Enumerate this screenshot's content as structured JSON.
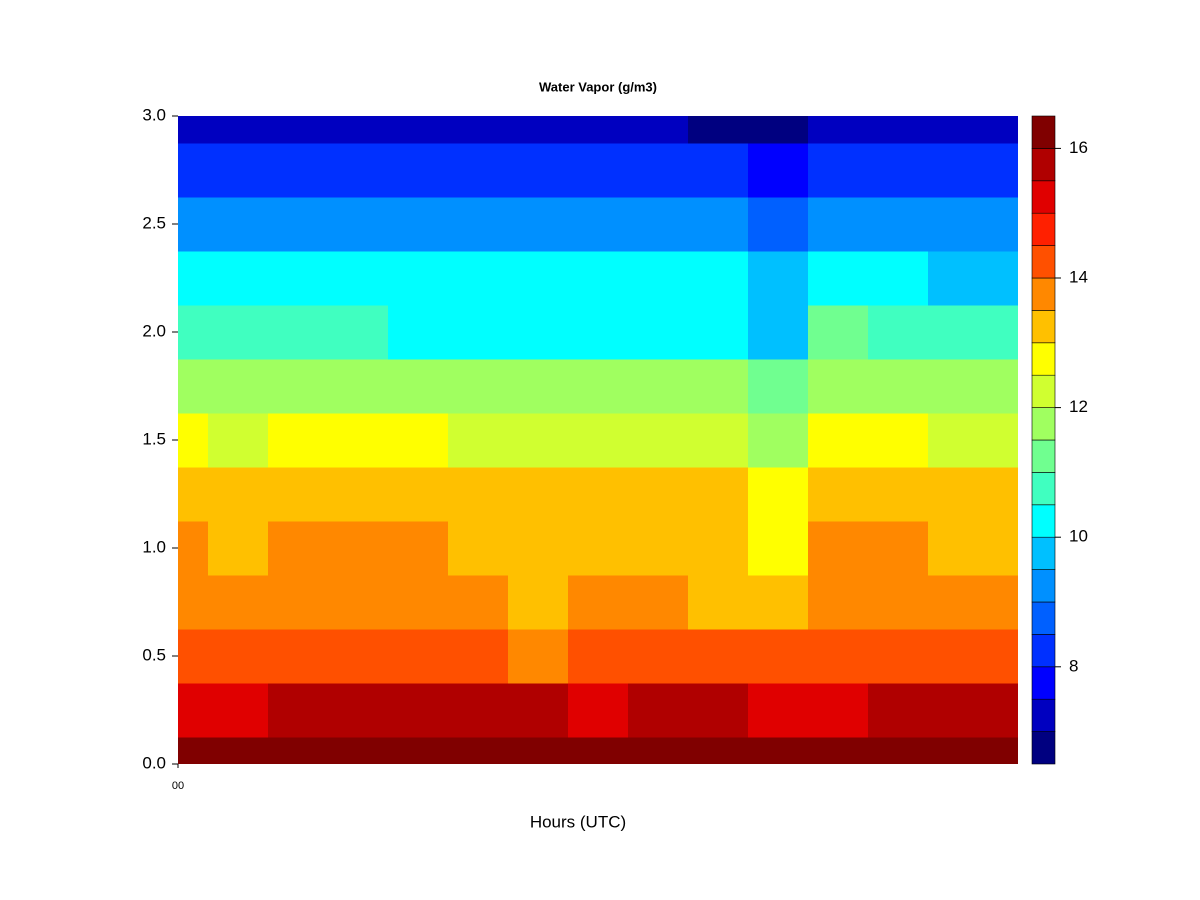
{
  "chart_data": {
    "type": "contour",
    "title": "Water Vapor (g/m3)",
    "x_label": "Hours (UTC)",
    "x": [
      0,
      1,
      2,
      3,
      4,
      5,
      6,
      7,
      8,
      9,
      10,
      11,
      12,
      13,
      14
    ],
    "y": [
      0,
      0.25,
      0.5,
      0.75,
      1,
      1.25,
      1.5,
      1.75,
      2,
      2.25,
      2.5,
      2.75,
      3
    ],
    "z": [
      [
        16.2,
        16.3,
        16.6,
        16.3,
        16.2,
        16.2,
        16.1,
        16.2,
        16.1,
        16.2,
        16.2,
        16.2,
        16.2,
        16.2,
        16.1
      ],
      [
        15.3,
        15.3,
        15.6,
        15.8,
        15.7,
        15.6,
        15.5,
        15.4,
        15.5,
        15.5,
        15.4,
        15.4,
        15.5,
        15.8,
        15.5
      ],
      [
        14.0,
        14.0,
        14.2,
        14.2,
        14.1,
        14.1,
        13.9,
        14.0,
        14.0,
        14.0,
        14.0,
        14.0,
        14.1,
        14.2,
        14.0
      ],
      [
        13.6,
        13.8,
        13.8,
        13.9,
        13.8,
        13.7,
        13.3,
        13.6,
        13.8,
        13.4,
        13.3,
        13.7,
        13.8,
        13.8,
        13.7
      ],
      [
        13.6,
        13.4,
        13.7,
        13.6,
        13.7,
        13.3,
        13.3,
        13.3,
        13.3,
        13.3,
        12.8,
        13.6,
        13.6,
        13.3,
        13.4
      ],
      [
        13.3,
        13.3,
        13.3,
        13.2,
        13.2,
        13.1,
        13.0,
        13.0,
        13.0,
        13.0,
        12.6,
        13.0,
        13.2,
        13.1,
        13.1
      ],
      [
        12.6,
        12.3,
        12.8,
        12.7,
        12.6,
        12.4,
        12.3,
        12.3,
        12.3,
        12.3,
        11.8,
        12.7,
        12.5,
        12.4,
        12.4
      ],
      [
        11.8,
        11.8,
        11.9,
        11.8,
        11.8,
        11.8,
        11.8,
        11.8,
        11.8,
        11.8,
        11.4,
        11.9,
        11.8,
        11.8,
        11.8
      ],
      [
        10.6,
        10.6,
        10.9,
        10.6,
        10.4,
        10.3,
        10.3,
        10.3,
        10.3,
        10.2,
        9.8,
        11.0,
        10.5,
        10.5,
        10.6
      ],
      [
        10.1,
        10.0,
        10.1,
        10.1,
        10.0,
        10.0,
        10.0,
        10.0,
        10.0,
        10.0,
        9.5,
        10.2,
        10.0,
        9.8,
        9.8
      ],
      [
        9.3,
        9.2,
        9.3,
        9.2,
        9.1,
        9.1,
        9.1,
        9.1,
        9.0,
        9.0,
        8.6,
        9.3,
        9.0,
        9.0,
        9.0
      ],
      [
        8.2,
        8.1,
        8.3,
        8.2,
        8.2,
        8.1,
        8.1,
        8.2,
        8.1,
        8.0,
        7.6,
        8.3,
        8.1,
        8.0,
        8.0
      ],
      [
        7.1,
        7.0,
        7.1,
        7.1,
        7.1,
        7.0,
        7.0,
        7.0,
        7.0,
        6.9,
        6.8,
        7.0,
        7.0,
        7.0,
        7.0
      ]
    ],
    "xlim": [
      0,
      14
    ],
    "xticks": [
      {
        "value": 0,
        "label": "00"
      }
    ],
    "ylim": [
      0,
      3
    ],
    "yticks": [
      {
        "value": 0,
        "label": "0.0"
      },
      {
        "value": 0.5,
        "label": "0.5"
      },
      {
        "value": 1,
        "label": "1.0"
      },
      {
        "value": 1.5,
        "label": "1.5"
      },
      {
        "value": 2,
        "label": "2.0"
      },
      {
        "value": 2.5,
        "label": "2.5"
      },
      {
        "value": 3,
        "label": "3.0"
      }
    ],
    "levels": [
      6.5,
      7,
      7.5,
      8,
      8.5,
      9,
      9.5,
      10,
      10.5,
      11,
      11.5,
      12,
      12.5,
      13,
      13.5,
      14,
      14.5,
      15,
      15.5,
      16,
      16.5
    ],
    "colors": [
      "#000080",
      "#0000c0",
      "#0000ff",
      "#0030ff",
      "#0060ff",
      "#0090ff",
      "#00c0ff",
      "#00ffff",
      "#40ffc0",
      "#70ff90",
      "#a0ff60",
      "#d0ff30",
      "#ffff00",
      "#ffc000",
      "#ff8800",
      "#ff5000",
      "#ff2000",
      "#e00000",
      "#b00000",
      "#800000"
    ],
    "colorbar_ticks": [
      8,
      10,
      12,
      14,
      16
    ]
  }
}
